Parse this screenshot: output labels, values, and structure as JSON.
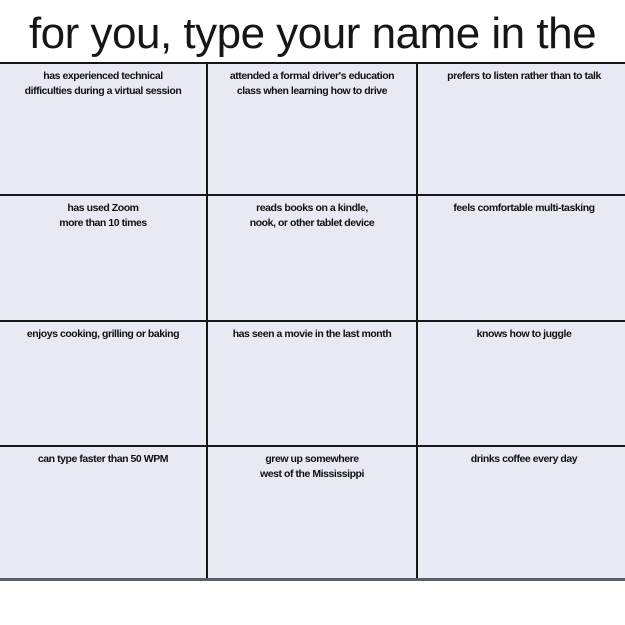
{
  "title": {
    "visible_text": "for you, type your name in the"
  },
  "grid": {
    "rows": 4,
    "columns": 3,
    "cell_background": "#e8eaf3",
    "line_color": "#161616",
    "bottom_line_color": "#596069",
    "cells": [
      {
        "text": "has experienced technical\ndifficulties during a virtual session"
      },
      {
        "text": "attended a formal driver's education\nclass when learning how to drive"
      },
      {
        "text": "prefers to listen rather than to talk"
      },
      {
        "text": "has used Zoom\nmore than 10 times"
      },
      {
        "text": "reads books on a kindle,\nnook, or other tablet device"
      },
      {
        "text": "feels comfortable multi-tasking"
      },
      {
        "text": "enjoys cooking, grilling or baking"
      },
      {
        "text": "has seen a movie in the last month"
      },
      {
        "text": "knows how to juggle"
      },
      {
        "text": "can type faster than 50 WPM"
      },
      {
        "text": "grew up somewhere\nwest of the Mississippi"
      },
      {
        "text": "drinks coffee every day"
      }
    ]
  }
}
